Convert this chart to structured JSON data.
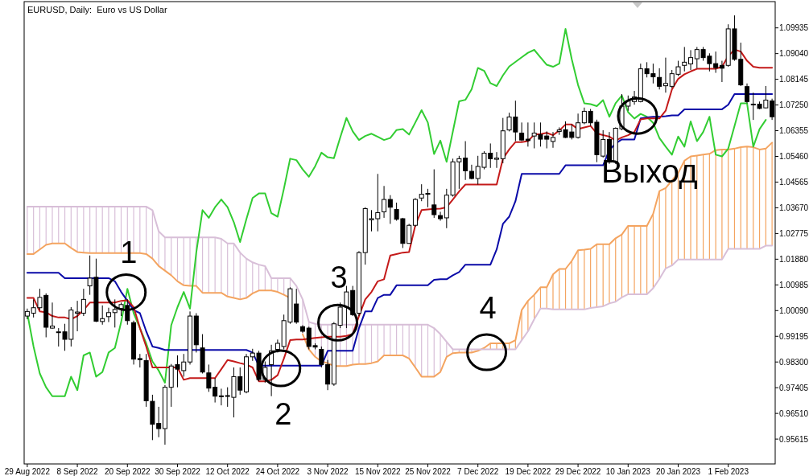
{
  "chart_data": {
    "type": "candlestick",
    "title": "EURUSD, Daily:  Euro vs US Dollar",
    "categories": [
      "29 Aug 2022",
      null,
      null,
      null,
      null,
      null,
      null,
      null,
      "8 Sep 2022",
      null,
      null,
      null,
      null,
      null,
      null,
      null,
      "20 Sep 2022",
      null,
      null,
      null,
      null,
      null,
      null,
      null,
      "30 Sep 2022",
      null,
      null,
      null,
      null,
      null,
      null,
      null,
      "12 Oct 2022",
      null,
      null,
      null,
      null,
      null,
      null,
      null,
      "24 Oct 2022",
      null,
      null,
      null,
      null,
      null,
      null,
      null,
      "3 Nov 2022",
      null,
      null,
      null,
      null,
      null,
      null,
      null,
      "15 Nov 2022",
      null,
      null,
      null,
      null,
      null,
      null,
      null,
      "25 Nov 2022",
      null,
      null,
      null,
      null,
      null,
      null,
      null,
      "7 Dec 2022",
      null,
      null,
      null,
      null,
      null,
      null,
      null,
      "19 Dec 2022",
      null,
      null,
      null,
      null,
      null,
      null,
      null,
      "29 Dec 2022",
      null,
      null,
      null,
      null,
      null,
      null,
      null,
      "10 Jan 2023",
      null,
      null,
      null,
      null,
      null,
      null,
      null,
      "20 Jan 2023",
      null,
      null,
      null,
      null,
      null,
      null,
      null,
      "1 Feb 2023",
      null,
      null,
      null,
      null,
      null,
      null,
      null
    ],
    "ohlc": [
      [
        0.999,
        1.0016,
        0.9979,
        1.0006
      ],
      [
        1.0,
        1.0048,
        0.9985,
        1.0019
      ],
      [
        1.0019,
        1.0085,
        1.0011,
        1.0055
      ],
      [
        1.0062,
        1.0069,
        0.9916,
        0.9951
      ],
      [
        0.9948,
        1.0037,
        0.9946,
        0.9955
      ],
      [
        0.9934,
        0.9948,
        0.9884,
        0.9935
      ],
      [
        0.9935,
        0.9963,
        0.9869,
        0.9909
      ],
      [
        0.9909,
        1.0021,
        0.9884,
        1.0011
      ],
      [
        1.0,
        1.0043,
        0.9937,
        1.0004
      ],
      [
        1.0,
        1.0085,
        0.999,
        1.0048
      ],
      [
        1.0095,
        1.0201,
        1.0064,
        1.0122
      ],
      [
        1.0125,
        1.019,
        0.9969,
        0.9972
      ],
      [
        0.9971,
        1.0027,
        0.996,
        0.9981
      ],
      [
        0.9988,
        1.0019,
        0.9969,
        1.0002
      ],
      [
        1.0002,
        1.0048,
        0.995,
        1.0013
      ],
      [
        1.0016,
        1.0037,
        0.999,
        1.003
      ],
      [
        1.0027,
        1.0048,
        0.996,
        0.9974
      ],
      [
        0.9967,
        0.9974,
        0.9821,
        0.984
      ],
      [
        0.9842,
        0.9858,
        0.9811,
        0.9838
      ],
      [
        0.9835,
        0.9858,
        0.9674,
        0.9695
      ],
      [
        0.9693,
        0.9716,
        0.9558,
        0.9613
      ],
      [
        0.9616,
        0.9674,
        0.9568,
        0.9598
      ],
      [
        0.9598,
        0.975,
        0.9542,
        0.9742
      ],
      [
        0.9742,
        0.9823,
        0.9674,
        0.9816
      ],
      [
        0.9821,
        0.9853,
        0.9742,
        0.9805
      ],
      [
        0.98,
        0.9858,
        0.9779,
        0.983
      ],
      [
        0.983,
        1.0006,
        0.9821,
        0.999
      ],
      [
        0.999,
        1.0,
        0.9863,
        0.989
      ],
      [
        0.9879,
        0.9927,
        0.979,
        0.9795
      ],
      [
        0.9792,
        0.9821,
        0.9726,
        0.9739
      ],
      [
        0.9742,
        0.9774,
        0.9689,
        0.9711
      ],
      [
        0.9712,
        0.9737,
        0.9679,
        0.971
      ],
      [
        0.9711,
        0.9742,
        0.9674,
        0.9713
      ],
      [
        0.9707,
        0.9811,
        0.9637,
        0.9779
      ],
      [
        0.9779,
        0.9811,
        0.9716,
        0.9732
      ],
      [
        0.9726,
        0.9858,
        0.9721,
        0.9848
      ],
      [
        0.9848,
        0.9876,
        0.9834,
        0.9861
      ],
      [
        0.9861,
        0.9869,
        0.9763,
        0.9769
      ],
      [
        0.9769,
        0.9832,
        0.9758,
        0.9811
      ],
      [
        0.9821,
        0.989,
        0.9711,
        0.9869
      ],
      [
        0.9874,
        0.9908,
        0.9863,
        0.9895
      ],
      [
        0.9884,
        0.9995,
        0.9874,
        0.9974
      ],
      [
        0.9969,
        1.009,
        0.9963,
        1.0085
      ],
      [
        1.0032,
        1.0085,
        0.9963,
        0.9969
      ],
      [
        0.9953,
        0.9958,
        0.9932,
        0.9937
      ],
      [
        0.9948,
        0.9953,
        0.9874,
        0.9884
      ],
      [
        0.9887,
        0.9895,
        0.9874,
        0.9882
      ],
      [
        0.9874,
        0.9884,
        0.9811,
        0.9821
      ],
      [
        0.9821,
        0.9837,
        0.9732,
        0.9753
      ],
      [
        0.9753,
        0.9969,
        0.9747,
        0.9963
      ],
      [
        0.9958,
        1.0037,
        0.9948,
        1.0021
      ],
      [
        1.0021,
        1.0095,
        0.9948,
        1.0074
      ],
      [
        1.0079,
        1.0095,
        0.999,
        0.9995
      ],
      [
        1.0,
        1.0216,
        0.999,
        1.0211
      ],
      [
        1.0211,
        1.0369,
        1.0169,
        1.0364
      ],
      [
        1.0325,
        1.0359,
        1.0285,
        1.0329
      ],
      [
        1.0329,
        1.0485,
        1.0285,
        1.035
      ],
      [
        1.0353,
        1.0443,
        1.0332,
        1.0396
      ],
      [
        1.0396,
        1.0411,
        1.0311,
        1.0369
      ],
      [
        1.0361,
        1.0385,
        1.0322,
        1.0327
      ],
      [
        1.0329,
        1.0332,
        1.0227,
        1.0243
      ],
      [
        1.0243,
        1.0311,
        1.0243,
        1.0306
      ],
      [
        1.0306,
        1.0401,
        1.0301,
        1.0396
      ],
      [
        1.0401,
        1.0449,
        1.039,
        1.0414
      ],
      [
        1.0415,
        1.0433,
        1.0369,
        1.0417
      ],
      [
        1.0377,
        1.0501,
        1.0332,
        1.0343
      ],
      [
        1.034,
        1.0353,
        1.0322,
        1.0329
      ],
      [
        1.0332,
        1.0433,
        1.0296,
        1.0411
      ],
      [
        1.0411,
        1.0538,
        1.0406,
        1.0527
      ],
      [
        1.0527,
        1.0548,
        1.0433,
        1.0538
      ],
      [
        1.054,
        1.0599,
        1.0464,
        1.0496
      ],
      [
        1.0494,
        1.0517,
        1.0466,
        1.0469
      ],
      [
        1.0469,
        1.0548,
        1.0448,
        1.0511
      ],
      [
        1.0508,
        1.0564,
        1.0501,
        1.0557
      ],
      [
        1.0557,
        1.0591,
        1.0506,
        1.0538
      ],
      [
        1.0536,
        1.0561,
        1.0506,
        1.054
      ],
      [
        1.0538,
        1.068,
        1.0522,
        1.0635
      ],
      [
        1.0638,
        1.0698,
        1.0633,
        1.0683
      ],
      [
        1.0683,
        1.074,
        1.0599,
        1.0631
      ],
      [
        1.0627,
        1.0664,
        1.0599,
        1.0603
      ],
      [
        1.0606,
        1.0664,
        1.058,
        1.0601
      ],
      [
        1.0617,
        1.0664,
        1.0574,
        1.0627
      ],
      [
        1.0622,
        1.0664,
        1.058,
        1.0606
      ],
      [
        1.0617,
        1.0633,
        1.0574,
        1.0606
      ],
      [
        1.0598,
        1.0631,
        1.0576,
        1.0612
      ],
      [
        1.0633,
        1.0647,
        1.0621,
        1.0638
      ],
      [
        1.0639,
        1.0668,
        1.061,
        1.0612
      ],
      [
        1.0631,
        1.0658,
        1.0605,
        1.0612
      ],
      [
        1.0612,
        1.0695,
        1.0608,
        1.0663
      ],
      [
        1.0663,
        1.0716,
        1.0658,
        1.0703
      ],
      [
        1.0703,
        1.0711,
        1.0652,
        1.0663
      ],
      [
        1.0665,
        1.0674,
        1.0526,
        1.0552
      ],
      [
        1.0547,
        1.0637,
        1.0542,
        1.0605
      ],
      [
        1.0605,
        1.0631,
        1.052,
        1.0526
      ],
      [
        1.0526,
        1.0647,
        1.052,
        1.0644
      ],
      [
        1.0642,
        1.0763,
        1.0637,
        1.0721
      ],
      [
        1.0721,
        1.0758,
        1.0705,
        1.0739
      ],
      [
        1.0737,
        1.0774,
        1.0726,
        1.0753
      ],
      [
        1.0737,
        1.0869,
        1.0734,
        1.0851
      ],
      [
        1.0851,
        1.0874,
        1.0821,
        1.0834
      ],
      [
        1.0834,
        1.0869,
        1.08,
        1.0823
      ],
      [
        1.0821,
        1.0853,
        1.0779,
        1.079
      ],
      [
        1.0792,
        1.089,
        1.0768,
        1.08
      ],
      [
        1.079,
        1.0847,
        1.0784,
        1.0834
      ],
      [
        1.0832,
        1.0879,
        1.0826,
        1.0858
      ],
      [
        1.0863,
        1.0927,
        1.0842,
        1.0874
      ],
      [
        1.0868,
        1.0916,
        1.0847,
        1.089
      ],
      [
        1.0886,
        1.0927,
        1.0853,
        1.0918
      ],
      [
        1.0918,
        1.0927,
        1.0879,
        1.089
      ],
      [
        1.0895,
        1.0905,
        1.0842,
        1.0869
      ],
      [
        1.0869,
        1.0911,
        1.0837,
        1.0855
      ],
      [
        1.0863,
        1.0879,
        1.0805,
        1.0853
      ],
      [
        1.0863,
        1.1006,
        1.0858,
        1.099
      ],
      [
        1.099,
        1.1037,
        1.0879,
        1.0884
      ],
      [
        1.0884,
        1.0942,
        1.0791,
        1.0795
      ],
      [
        1.0789,
        1.08,
        1.0731,
        1.0737
      ],
      [
        1.0728,
        1.0768,
        1.0673,
        1.0726
      ],
      [
        1.0728,
        1.0737,
        1.071,
        1.0713
      ],
      [
        1.0715,
        1.0791,
        1.0713,
        1.0742
      ],
      [
        1.0739,
        1.0747,
        1.0673,
        1.0684
      ]
    ],
    "series": [
      {
        "type": "line",
        "color": "#f4a460",
        "values": [
          1.0206,
          1.0206,
          1.0222,
          1.0238,
          1.0243,
          1.0243,
          1.0243,
          1.0227,
          1.0213,
          1.0211,
          1.0209,
          1.0209,
          1.0209,
          1.0209,
          1.0209,
          1.0209,
          1.0209,
          1.0209,
          1.0209,
          1.0206,
          1.019,
          1.0164,
          1.0148,
          1.0132,
          1.0111,
          1.0097,
          1.0095,
          1.0095,
          1.0071,
          1.0071,
          1.0071,
          1.0071,
          1.0058,
          1.0053,
          1.0048,
          1.0053,
          1.0069,
          1.0079,
          1.0079,
          1.0079,
          1.0074,
          1.0064,
          1.0053,
          null,
          0.9927,
          0.9874,
          0.9848,
          0.9832,
          0.9826,
          0.9816,
          0.9816,
          0.9816,
          0.9821,
          0.9823,
          0.9823,
          0.9826,
          0.9832,
          0.9853,
          0.9853,
          0.9853,
          0.9853,
          0.9842,
          0.9811,
          0.9779,
          0.9779,
          0.9779,
          0.9795,
          0.9848,
          0.9861,
          0.9863,
          0.9863,
          0.9863,
          0.9869,
          0.9879,
          0.9895,
          0.9895,
          0.9895,
          0.9895,
          0.9906,
          1.0011,
          1.0043,
          1.0064,
          1.009,
          1.009,
          1.0135,
          1.0154,
          1.0154,
          1.0182,
          1.0219,
          1.0221,
          1.0224,
          1.024,
          1.024,
          1.024,
          1.0261,
          1.0274,
          1.0304,
          1.0304,
          1.0304,
          1.0304,
          1.0346,
          1.0425,
          1.0436,
          1.0462,
          1.0488,
          1.0531,
          1.0546,
          1.0549,
          1.0552,
          1.0555,
          1.0568,
          1.057,
          1.057,
          1.0573,
          1.0578,
          1.058,
          1.0578,
          1.057,
          1.0573,
          1.0594
        ]
      },
      {
        "type": "line",
        "color": "#d8bfd8",
        "values": [
          1.0371,
          1.0371,
          1.0371,
          1.0371,
          1.0371,
          1.0371,
          1.0371,
          1.0371,
          1.0371,
          1.0371,
          1.0371,
          1.0371,
          1.0371,
          1.0371,
          1.0371,
          1.0371,
          1.0371,
          1.0371,
          1.0371,
          1.0371,
          1.0359,
          1.0285,
          1.0264,
          1.0264,
          1.0264,
          1.0264,
          1.0264,
          1.0264,
          1.0264,
          1.0264,
          1.0264,
          1.0259,
          1.0243,
          1.0243,
          1.0211,
          1.019,
          1.0177,
          1.0169,
          1.0164,
          1.0122,
          1.0122,
          1.0122,
          1.0122,
          1.0095,
          1.0048,
          0.9969,
          0.9963,
          0.996,
          0.996,
          0.996,
          0.996,
          0.996,
          0.996,
          0.996,
          0.996,
          0.996,
          0.996,
          0.996,
          0.996,
          0.996,
          0.996,
          0.996,
          0.996,
          0.996,
          0.996,
          0.9948,
          0.9927,
          0.99,
          0.9874,
          0.9874,
          0.9874,
          0.9874,
          0.9874,
          0.9874,
          0.9874,
          0.9874,
          0.9874,
          0.9874,
          0.9874,
          0.9906,
          0.9937,
          0.9979,
          1.0016,
          1.0016,
          1.0013,
          1.0013,
          1.0013,
          1.0013,
          1.0013,
          1.0013,
          1.0018,
          1.0021,
          1.0024,
          1.0034,
          1.004,
          1.0055,
          1.0066,
          1.0066,
          1.0066,
          1.0066,
          1.0087,
          1.0119,
          1.0156,
          1.0166,
          1.0187,
          1.0187,
          1.0187,
          1.0187,
          1.0187,
          1.0187,
          1.0187,
          1.0187,
          1.0224,
          1.0224,
          1.0224,
          1.0224,
          1.0224,
          1.0224,
          1.0235,
          1.0235
        ]
      },
      {
        "type": "line",
        "color": "#32cd32",
        "values": [
          1.0,
          0.9884,
          0.979,
          0.9742,
          0.9711,
          0.9711,
          0.9711,
          0.9779,
          0.9732,
          0.9853,
          0.9863,
          0.9779,
          0.9795,
          0.9863,
          0.9879,
          0.9969,
          1.0085,
          1.0,
          0.9948,
          0.9895,
          0.9832,
          0.98,
          0.9758,
          0.9958,
          1.0021,
          1.0074,
          1.0016,
          1.0211,
          1.0359,
          1.0332,
          1.0369,
          1.0396,
          1.0369,
          1.0317,
          1.0248,
          1.0327,
          1.0401,
          1.0417,
          1.0417,
          1.0348,
          1.0336,
          1.0433,
          1.0538,
          1.0533,
          1.0501,
          1.0475,
          1.0512,
          1.0559,
          1.0543,
          1.054,
          1.0612,
          1.068,
          1.0633,
          1.0603,
          1.0617,
          1.0625,
          1.0614,
          1.0603,
          1.061,
          1.0638,
          1.0641,
          1.0622,
          1.0664,
          1.0707,
          1.0664,
          1.0554,
          1.0601,
          1.0527,
          1.0633,
          1.0738,
          1.0743,
          1.078,
          1.0854,
          1.0844,
          1.0801,
          1.0791,
          1.0828,
          1.0859,
          1.0875,
          1.0891,
          1.0907,
          1.0917,
          1.0891,
          1.0865,
          1.0858,
          1.0869,
          1.099,
          1.0884,
          1.0795,
          1.0731,
          1.0728,
          1.0721,
          1.0742,
          1.0684,
          1.0731,
          1.0758,
          1.07,
          1.0678,
          1.0694,
          1.0684,
          1.0663,
          1.061,
          1.058,
          1.0552,
          1.0615,
          1.058,
          1.0668,
          1.0599,
          1.0631,
          1.0684,
          1.0552,
          1.0546,
          1.0573,
          1.0652,
          1.0731,
          1.0731,
          1.058,
          1.0641,
          1.0673,
          null
        ]
      },
      {
        "type": "line",
        "color": "#0a0aa8",
        "values": [
          1.0141,
          1.0141,
          1.0141,
          1.0141,
          1.0141,
          1.0141,
          1.0122,
          1.0122,
          1.0122,
          1.0122,
          1.0122,
          1.0122,
          1.0122,
          1.0122,
          1.0111,
          1.0074,
          1.0043,
          1.0011,
          1.0,
          0.9937,
          0.9884,
          0.9879,
          0.9872,
          0.9872,
          0.9872,
          0.9872,
          0.9872,
          0.9872,
          0.9872,
          0.9872,
          0.9872,
          0.9872,
          0.9872,
          0.9872,
          0.9872,
          0.9872,
          0.9863,
          0.9817,
          0.9817,
          0.9817,
          0.9817,
          0.9817,
          0.9817,
          0.9817,
          0.9817,
          0.9817,
          0.9817,
          0.9817,
          0.9869,
          0.9869,
          0.9869,
          0.9869,
          0.9869,
          0.9948,
          1.0006,
          1.0006,
          1.0053,
          1.0064,
          1.0064,
          1.0097,
          1.0097,
          1.0097,
          1.0097,
          1.0097,
          1.0097,
          1.0116,
          1.0118,
          1.0118,
          1.0132,
          1.0143,
          1.0169,
          1.0169,
          1.0169,
          1.0169,
          1.0169,
          1.0222,
          1.0311,
          1.0336,
          1.039,
          1.0485,
          1.0485,
          1.0485,
          1.0485,
          1.0485,
          1.0485,
          1.0485,
          1.0515,
          1.0515,
          1.0515,
          1.0515,
          1.0515,
          1.0515,
          1.0515,
          1.0568,
          1.0591,
          1.0605,
          1.0605,
          1.0605,
          1.0678,
          1.0682,
          1.0684,
          1.0684,
          1.0686,
          1.0689,
          1.0689,
          1.071,
          1.071,
          1.071,
          1.071,
          1.071,
          1.071,
          1.071,
          1.0726,
          1.0763,
          1.0763,
          1.0763,
          1.0763,
          1.0763,
          1.0763,
          1.0763
        ]
      },
      {
        "type": "line",
        "color": "#c41a1a",
        "values": [
          1.0053,
          1.0053,
          1.0006,
          1.0003,
          0.999,
          0.9985,
          0.9985,
          0.9979,
          0.999,
          1.0011,
          1.0037,
          1.0037,
          1.0037,
          1.0037,
          1.0037,
          1.0043,
          1.0045,
          1.0021,
          0.9948,
          0.9884,
          0.9811,
          0.9811,
          0.9811,
          0.9811,
          0.9811,
          0.9768,
          0.9774,
          0.9774,
          0.9774,
          0.9774,
          0.9774,
          0.9805,
          0.9837,
          0.9832,
          0.9826,
          0.9821,
          0.9811,
          0.9763,
          0.9763,
          0.9768,
          0.9784,
          0.9842,
          0.9906,
          0.9908,
          0.9908,
          0.9911,
          0.9914,
          0.9916,
          0.9918,
          0.9918,
          0.9918,
          0.9921,
          0.9927,
          0.999,
          1.0048,
          1.0074,
          1.0111,
          1.0118,
          1.0201,
          1.0206,
          1.0211,
          1.0213,
          1.0306,
          1.0359,
          1.0361,
          1.0363,
          1.0364,
          1.0369,
          1.0396,
          1.0424,
          1.0448,
          1.0448,
          1.0448,
          1.0448,
          1.0448,
          1.0448,
          1.0538,
          1.057,
          1.0596,
          1.0596,
          1.0599,
          1.0622,
          1.0624,
          1.0628,
          1.062,
          1.0636,
          1.0657,
          1.0657,
          1.0641,
          1.0647,
          1.0652,
          1.0626,
          1.062,
          1.0615,
          1.0601,
          1.0612,
          1.062,
          1.0631,
          1.0675,
          1.0678,
          1.0678,
          1.0678,
          1.0705,
          1.0779,
          1.0816,
          1.0832,
          1.0842,
          1.0851,
          1.0851,
          1.0851,
          1.0851,
          1.0858,
          1.0895,
          1.0918,
          1.0911,
          1.0879,
          1.0858,
          1.0855,
          1.0855,
          1.0855
        ]
      }
    ],
    "ylim": [
      0.9475,
      1.1085
    ],
    "yticks": [
      {
        "value": 1.09935,
        "label": "1.09935"
      },
      {
        "value": 1.0904,
        "label": "1.09040"
      },
      {
        "value": 1.08145,
        "label": "1.08145"
      },
      {
        "value": 1.0725,
        "label": "1.07250"
      },
      {
        "value": 1.06355,
        "label": "1.06355"
      },
      {
        "value": 1.0546,
        "label": "1.05460"
      },
      {
        "value": 1.04565,
        "label": "1.04565"
      },
      {
        "value": 1.0367,
        "label": "1.03670"
      },
      {
        "value": 1.02775,
        "label": "1.02775"
      },
      {
        "value": 1.0188,
        "label": "1.01880"
      },
      {
        "value": 1.00985,
        "label": "1.00985"
      },
      {
        "value": 1.0009,
        "label": "1.00090"
      },
      {
        "value": 0.99195,
        "label": "0.99195"
      },
      {
        "value": 0.983,
        "label": "0.98300"
      },
      {
        "value": 0.97405,
        "label": "0.97405"
      },
      {
        "value": 0.9651,
        "label": "0.96510"
      },
      {
        "value": 0.95615,
        "label": "0.95615"
      }
    ],
    "annotations": [
      {
        "text": "1",
        "y": 1.0073
      },
      {
        "text": "2",
        "y": 0.9808
      },
      {
        "text": "3",
        "y": 0.9967
      },
      {
        "text": "4",
        "y": 0.9864
      },
      {
        "text": "Выход",
        "y": 1.0687
      }
    ]
  }
}
